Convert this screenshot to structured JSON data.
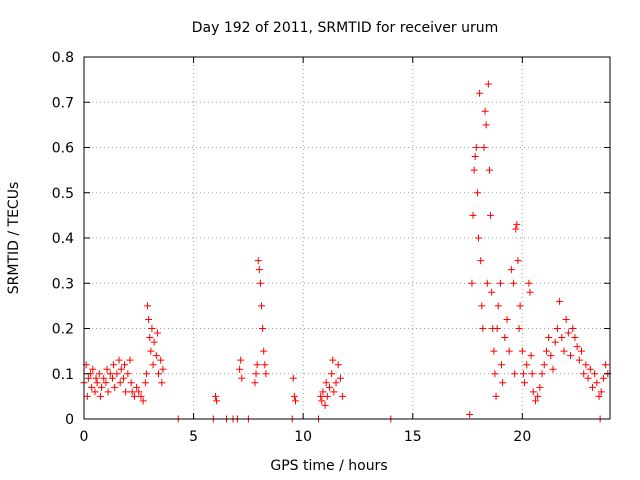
{
  "chart_data": {
    "type": "scatter",
    "title": "Day 192 of 2011, SRMTID for receiver urum",
    "xlabel": "GPS time / hours",
    "ylabel": "SRMTID / TECUs",
    "xlim": [
      0,
      24
    ],
    "ylim": [
      0,
      0.8
    ],
    "xticks": [
      0,
      5,
      10,
      15,
      20
    ],
    "yticks": [
      0,
      0.1,
      0.2,
      0.3,
      0.4,
      0.5,
      0.6,
      0.7,
      0.8
    ],
    "x_tick_labels": [
      "0",
      "5",
      "10",
      "15",
      "20"
    ],
    "y_tick_labels": [
      "0",
      "0.1",
      "0.2",
      "0.3",
      "0.4",
      "0.5",
      "0.6",
      "0.7",
      "0.8"
    ],
    "grid": true,
    "marker": "plus",
    "color": "#ff0000",
    "series": [
      {
        "name": "SRMTID",
        "points": [
          [
            0.0,
            0.08
          ],
          [
            0.1,
            0.12
          ],
          [
            0.15,
            0.05
          ],
          [
            0.2,
            0.09
          ],
          [
            0.3,
            0.1
          ],
          [
            0.35,
            0.07
          ],
          [
            0.4,
            0.11
          ],
          [
            0.5,
            0.06
          ],
          [
            0.55,
            0.09
          ],
          [
            0.6,
            0.08
          ],
          [
            0.7,
            0.1
          ],
          [
            0.75,
            0.05
          ],
          [
            0.8,
            0.07
          ],
          [
            0.9,
            0.09
          ],
          [
            1.0,
            0.08
          ],
          [
            1.05,
            0.11
          ],
          [
            1.1,
            0.06
          ],
          [
            1.2,
            0.1
          ],
          [
            1.3,
            0.09
          ],
          [
            1.35,
            0.12
          ],
          [
            1.4,
            0.07
          ],
          [
            1.5,
            0.1
          ],
          [
            1.6,
            0.13
          ],
          [
            1.65,
            0.08
          ],
          [
            1.7,
            0.11
          ],
          [
            1.8,
            0.09
          ],
          [
            1.85,
            0.12
          ],
          [
            1.9,
            0.06
          ],
          [
            2.0,
            0.1
          ],
          [
            2.1,
            0.13
          ],
          [
            2.15,
            0.08
          ],
          [
            2.2,
            0.06
          ],
          [
            2.3,
            0.05
          ],
          [
            2.4,
            0.07
          ],
          [
            2.5,
            0.06
          ],
          [
            2.6,
            0.05
          ],
          [
            2.7,
            0.04
          ],
          [
            2.8,
            0.08
          ],
          [
            2.85,
            0.1
          ],
          [
            2.9,
            0.25
          ],
          [
            2.95,
            0.22
          ],
          [
            3.0,
            0.18
          ],
          [
            3.05,
            0.15
          ],
          [
            3.1,
            0.2
          ],
          [
            3.15,
            0.12
          ],
          [
            3.2,
            0.17
          ],
          [
            3.3,
            0.14
          ],
          [
            3.35,
            0.19
          ],
          [
            3.4,
            0.1
          ],
          [
            3.5,
            0.13
          ],
          [
            3.55,
            0.08
          ],
          [
            3.6,
            0.11
          ],
          [
            4.3,
            0.0
          ],
          [
            5.9,
            0.0
          ],
          [
            6.0,
            0.05
          ],
          [
            6.05,
            0.04
          ],
          [
            6.5,
            0.0
          ],
          [
            6.8,
            0.0
          ],
          [
            7.0,
            0.0
          ],
          [
            7.1,
            0.11
          ],
          [
            7.15,
            0.13
          ],
          [
            7.2,
            0.09
          ],
          [
            7.5,
            0.0
          ],
          [
            7.8,
            0.08
          ],
          [
            7.85,
            0.1
          ],
          [
            7.9,
            0.12
          ],
          [
            7.95,
            0.35
          ],
          [
            8.0,
            0.33
          ],
          [
            8.05,
            0.3
          ],
          [
            8.1,
            0.25
          ],
          [
            8.15,
            0.2
          ],
          [
            8.2,
            0.15
          ],
          [
            8.25,
            0.12
          ],
          [
            8.3,
            0.1
          ],
          [
            9.5,
            0.0
          ],
          [
            9.55,
            0.09
          ],
          [
            9.6,
            0.05
          ],
          [
            9.65,
            0.04
          ],
          [
            10.7,
            0.0
          ],
          [
            10.8,
            0.05
          ],
          [
            10.85,
            0.04
          ],
          [
            10.9,
            0.06
          ],
          [
            11.0,
            0.03
          ],
          [
            11.05,
            0.08
          ],
          [
            11.1,
            0.05
          ],
          [
            11.2,
            0.07
          ],
          [
            11.3,
            0.1
          ],
          [
            11.35,
            0.13
          ],
          [
            11.4,
            0.06
          ],
          [
            11.5,
            0.08
          ],
          [
            11.6,
            0.12
          ],
          [
            11.7,
            0.09
          ],
          [
            11.8,
            0.05
          ],
          [
            14.0,
            0.0
          ],
          [
            17.6,
            0.01
          ],
          [
            17.7,
            0.3
          ],
          [
            17.75,
            0.45
          ],
          [
            17.8,
            0.55
          ],
          [
            17.85,
            0.58
          ],
          [
            17.9,
            0.6
          ],
          [
            17.95,
            0.5
          ],
          [
            18.0,
            0.4
          ],
          [
            18.05,
            0.72
          ],
          [
            18.1,
            0.35
          ],
          [
            18.15,
            0.25
          ],
          [
            18.2,
            0.2
          ],
          [
            18.25,
            0.6
          ],
          [
            18.3,
            0.68
          ],
          [
            18.35,
            0.65
          ],
          [
            18.4,
            0.3
          ],
          [
            18.45,
            0.74
          ],
          [
            18.5,
            0.55
          ],
          [
            18.55,
            0.45
          ],
          [
            18.6,
            0.28
          ],
          [
            18.65,
            0.2
          ],
          [
            18.7,
            0.15
          ],
          [
            18.75,
            0.1
          ],
          [
            18.8,
            0.05
          ],
          [
            18.85,
            0.2
          ],
          [
            18.9,
            0.25
          ],
          [
            19.0,
            0.3
          ],
          [
            19.05,
            0.12
          ],
          [
            19.1,
            0.08
          ],
          [
            19.2,
            0.18
          ],
          [
            19.3,
            0.22
          ],
          [
            19.4,
            0.15
          ],
          [
            19.5,
            0.33
          ],
          [
            19.6,
            0.3
          ],
          [
            19.65,
            0.1
          ],
          [
            19.7,
            0.42
          ],
          [
            19.75,
            0.43
          ],
          [
            19.8,
            0.35
          ],
          [
            19.85,
            0.2
          ],
          [
            19.9,
            0.25
          ],
          [
            20.0,
            0.15
          ],
          [
            20.05,
            0.1
          ],
          [
            20.1,
            0.08
          ],
          [
            20.2,
            0.12
          ],
          [
            20.3,
            0.3
          ],
          [
            20.35,
            0.28
          ],
          [
            20.4,
            0.14
          ],
          [
            20.45,
            0.1
          ],
          [
            20.5,
            0.06
          ],
          [
            20.6,
            0.04
          ],
          [
            20.7,
            0.05
          ],
          [
            20.8,
            0.07
          ],
          [
            20.9,
            0.1
          ],
          [
            21.0,
            0.12
          ],
          [
            21.1,
            0.15
          ],
          [
            21.2,
            0.18
          ],
          [
            21.3,
            0.14
          ],
          [
            21.4,
            0.11
          ],
          [
            21.5,
            0.17
          ],
          [
            21.6,
            0.2
          ],
          [
            21.7,
            0.26
          ],
          [
            21.8,
            0.18
          ],
          [
            21.9,
            0.15
          ],
          [
            22.0,
            0.22
          ],
          [
            22.1,
            0.19
          ],
          [
            22.2,
            0.14
          ],
          [
            22.3,
            0.2
          ],
          [
            22.4,
            0.18
          ],
          [
            22.5,
            0.16
          ],
          [
            22.6,
            0.13
          ],
          [
            22.7,
            0.15
          ],
          [
            22.8,
            0.1
          ],
          [
            22.9,
            0.12
          ],
          [
            23.0,
            0.09
          ],
          [
            23.1,
            0.11
          ],
          [
            23.2,
            0.07
          ],
          [
            23.3,
            0.1
          ],
          [
            23.4,
            0.08
          ],
          [
            23.5,
            0.05
          ],
          [
            23.55,
            0.0
          ],
          [
            23.6,
            0.06
          ],
          [
            23.7,
            0.09
          ],
          [
            23.8,
            0.12
          ],
          [
            23.9,
            0.1
          ]
        ]
      }
    ]
  }
}
